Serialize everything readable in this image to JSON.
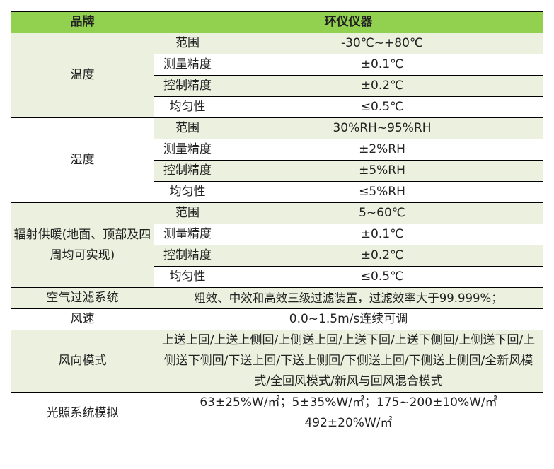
{
  "header": {
    "brand": "品牌",
    "value": "环仪仪器"
  },
  "groups": [
    {
      "label": "温度",
      "rows": [
        [
          "范围",
          "-30℃~+80℃"
        ],
        [
          "测量精度",
          "±0.1℃"
        ],
        [
          "控制精度",
          "±0.2℃"
        ],
        [
          "均匀性",
          "≤0.5℃"
        ]
      ]
    },
    {
      "label": "湿度",
      "rows": [
        [
          "范围",
          "30%RH~95%RH"
        ],
        [
          "测量精度",
          "±2%RH"
        ],
        [
          "控制精度",
          "±5%RH"
        ],
        [
          "均匀性",
          "≤5%RH"
        ]
      ]
    },
    {
      "label": "辐射供暖(地面、顶部及四周均可实现)",
      "rows": [
        [
          "范围",
          "5~60℃"
        ],
        [
          "测量精度",
          "±0.1℃"
        ],
        [
          "控制精度",
          "±0.2℃"
        ],
        [
          "均匀性",
          "≤0.5℃"
        ]
      ]
    }
  ],
  "singles": [
    {
      "label": "空气过滤系统",
      "value": "粗效、中效和高效三级过滤装置，过滤效率大于99.999%；"
    },
    {
      "label": "风速",
      "value": "0.0~1.5m/s连续可调"
    },
    {
      "label": "风向模式",
      "value": "上送上回/上送上侧回/上侧送上回/上送下回/上送下侧回/上侧送下回/上侧送下侧回/下送上回/下送上侧回/下侧送上回/下侧送上侧回/全新风模式/全回风模式/新风与回风混合模式"
    },
    {
      "label": "光照系统模拟",
      "value": "63±25%W/㎡；5±35%W/㎡；175~200±10%W/㎡ 492±20%W/㎡"
    }
  ],
  "colors": {
    "header": "#92d050",
    "band": "#ebf1de"
  }
}
